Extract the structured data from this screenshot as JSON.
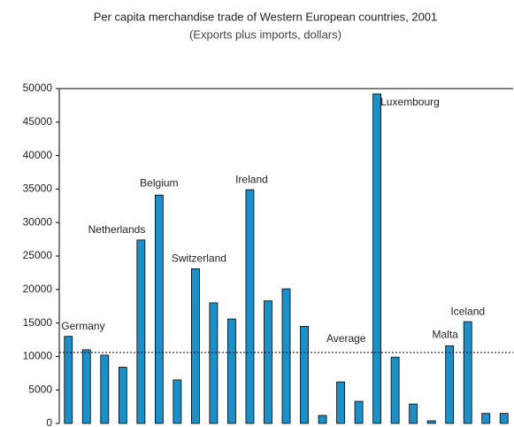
{
  "chart_data": {
    "type": "bar",
    "title": "Per capita merchandise trade of Western European countries, 2001",
    "subtitle": "(Exports plus imports, dollars)",
    "categories": [
      "Germany",
      null,
      null,
      null,
      "Netherlands",
      "Belgium",
      null,
      "Switzerland",
      null,
      null,
      "Ireland",
      null,
      null,
      null,
      null,
      null,
      null,
      "Luxembourg",
      null,
      null,
      null,
      "Malta",
      "Iceland",
      null,
      null
    ],
    "values": [
      13000,
      11000,
      10200,
      8400,
      27400,
      34100,
      6500,
      23100,
      18000,
      15600,
      34900,
      18300,
      20100,
      14500,
      1200,
      6200,
      3300,
      49200,
      9900,
      2900,
      400,
      11600,
      15200,
      1500,
      1500
    ],
    "color": "#1a8fc8",
    "ylim": [
      0,
      50000
    ],
    "yticks": [
      0,
      5000,
      10000,
      15000,
      20000,
      25000,
      30000,
      35000,
      40000,
      45000,
      50000
    ],
    "annotations": [
      {
        "label": "Average",
        "value": 10600
      }
    ]
  }
}
